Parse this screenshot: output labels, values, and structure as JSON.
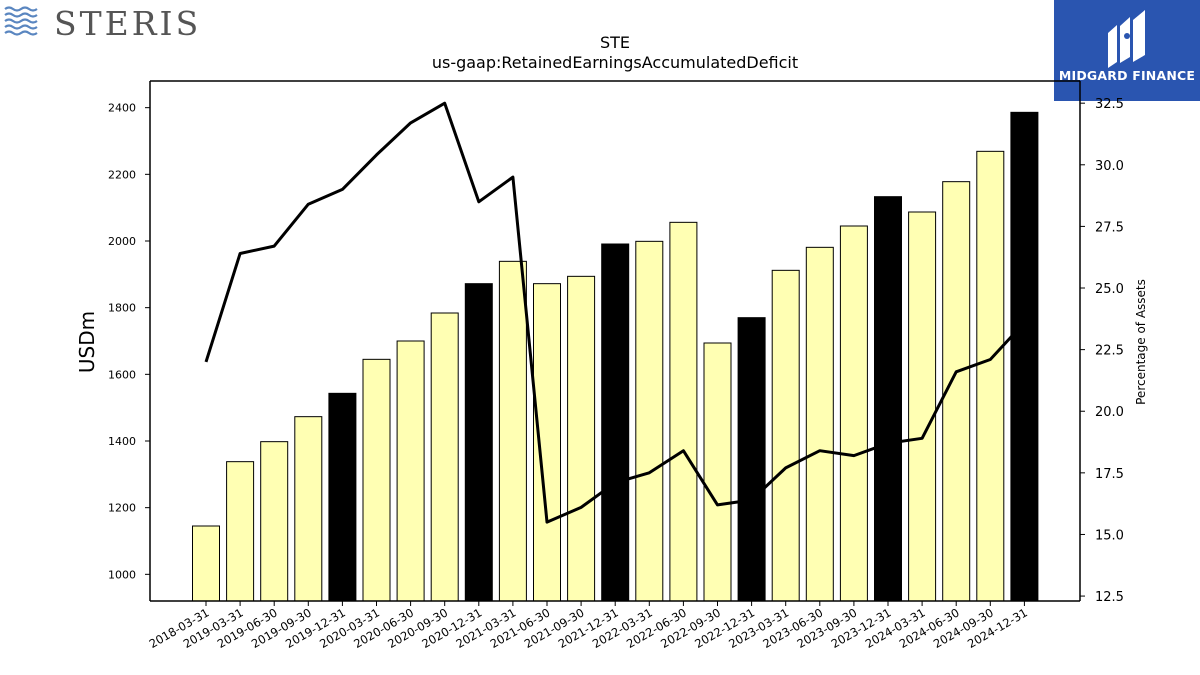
{
  "header": {
    "left_logo_text": "STERIS",
    "right_logo_text": "MIDGARD FINANCE"
  },
  "chart_data": {
    "type": "bar",
    "title": "STE",
    "subtitle": "us-gaap:RetainedEarningsAccumulatedDeficit",
    "ylabel": "USDm",
    "y2label": "Percentage of Assets",
    "ylim": [
      920,
      2480
    ],
    "y2lim": [
      12.3,
      33.4
    ],
    "yticks": [
      1000,
      1200,
      1400,
      1600,
      1800,
      2000,
      2200,
      2400
    ],
    "y2ticks": [
      "12.5",
      "15.0",
      "17.5",
      "20.0",
      "22.5",
      "25.0",
      "27.5",
      "30.0",
      "32.5"
    ],
    "categories": [
      "2018-03-31",
      "2019-03-31",
      "2019-06-30",
      "2019-09-30",
      "2019-12-31",
      "2020-03-31",
      "2020-06-30",
      "2020-09-30",
      "2020-12-31",
      "2021-03-31",
      "2021-06-30",
      "2021-09-30",
      "2021-12-31",
      "2022-03-31",
      "2022-06-30",
      "2022-09-30",
      "2022-12-31",
      "2023-03-31",
      "2023-06-30",
      "2023-09-30",
      "2023-12-31",
      "2024-03-31",
      "2024-06-30",
      "2024-09-30",
      "2024-12-31"
    ],
    "series": [
      {
        "type": "bar",
        "values": [
          1145,
          1338,
          1398,
          1473,
          1543,
          1645,
          1700,
          1784,
          1872,
          1939,
          1872,
          1894,
          1991,
          1999,
          2056,
          1694,
          1770,
          1912,
          1981,
          2045,
          2133,
          2087,
          2178,
          2269,
          2386
        ],
        "highlight": [
          false,
          false,
          false,
          false,
          true,
          false,
          false,
          false,
          true,
          false,
          false,
          false,
          true,
          false,
          false,
          false,
          true,
          false,
          false,
          false,
          true,
          false,
          false,
          false,
          true
        ],
        "color": "#ffffb3",
        "highlight_color": "#000000"
      },
      {
        "type": "line",
        "axis": "right",
        "values": [
          22.0,
          26.4,
          26.7,
          28.4,
          29.0,
          30.4,
          31.7,
          32.5,
          28.5,
          29.5,
          15.5,
          16.1,
          17.1,
          17.5,
          18.4,
          16.2,
          16.4,
          17.7,
          18.4,
          18.2,
          18.7,
          18.9,
          21.6,
          22.1,
          23.6
        ],
        "color": "#000000"
      }
    ],
    "grid": false,
    "legend": "none"
  }
}
